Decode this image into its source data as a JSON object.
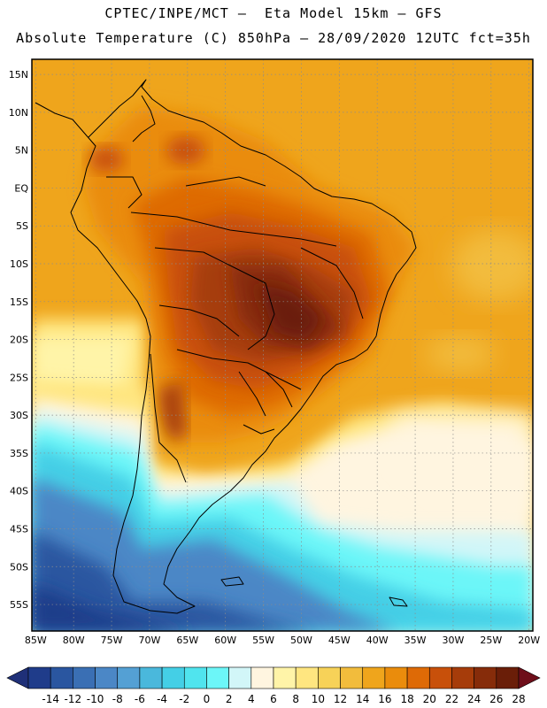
{
  "title": {
    "line1": "CPTEC/INPE/MCT –  Eta Model 15km – GFS",
    "line2": "Absolute Temperature (C) 850hPa – 28/09/2020 12UTC fct=35h"
  },
  "map": {
    "lat_labels": [
      "15N",
      "10N",
      "5N",
      "EQ",
      "5S",
      "10S",
      "15S",
      "20S",
      "25S",
      "30S",
      "35S",
      "40S",
      "45S",
      "50S",
      "55S"
    ],
    "lat_values": [
      15,
      10,
      5,
      0,
      -5,
      -10,
      -15,
      -20,
      -25,
      -30,
      -35,
      -40,
      -45,
      -50,
      -55
    ],
    "lon_labels": [
      "85W",
      "80W",
      "75W",
      "70W",
      "65W",
      "60W",
      "55W",
      "50W",
      "45W",
      "40W",
      "35W",
      "30W",
      "25W",
      "20W"
    ],
    "lon_values": [
      -85,
      -80,
      -75,
      -70,
      -65,
      -60,
      -55,
      -50,
      -45,
      -40,
      -35,
      -30,
      -25,
      -20
    ],
    "lon_range": [
      -85.5,
      -19.5
    ],
    "lat_range": [
      -58.5,
      17
    ],
    "variable": "Absolute Temperature (C) 850hPa"
  },
  "colorbar": {
    "tick_labels": [
      "-14",
      "-12",
      "-10",
      "-8",
      "-6",
      "-4",
      "-2",
      "0",
      "2",
      "4",
      "6",
      "8",
      "10",
      "12",
      "14",
      "16",
      "18",
      "20",
      "22",
      "24",
      "26",
      "28"
    ],
    "colors": [
      "#1f3c8a",
      "#2a56a0",
      "#3a6fb4",
      "#4b87c6",
      "#54a0d4",
      "#4ab8dc",
      "#44cfe6",
      "#50e4ee",
      "#6cf6f8",
      "#d2f6f8",
      "#fff5e0",
      "#fff4a8",
      "#ffe680",
      "#f7d258",
      "#f2bc3c",
      "#efa51c",
      "#ea8c0c",
      "#de6a06",
      "#c8500a",
      "#a63c0a",
      "#862c0a",
      "#6a1e08"
    ],
    "under_color": "#1f3078",
    "over_color": "#6e0e1a"
  }
}
